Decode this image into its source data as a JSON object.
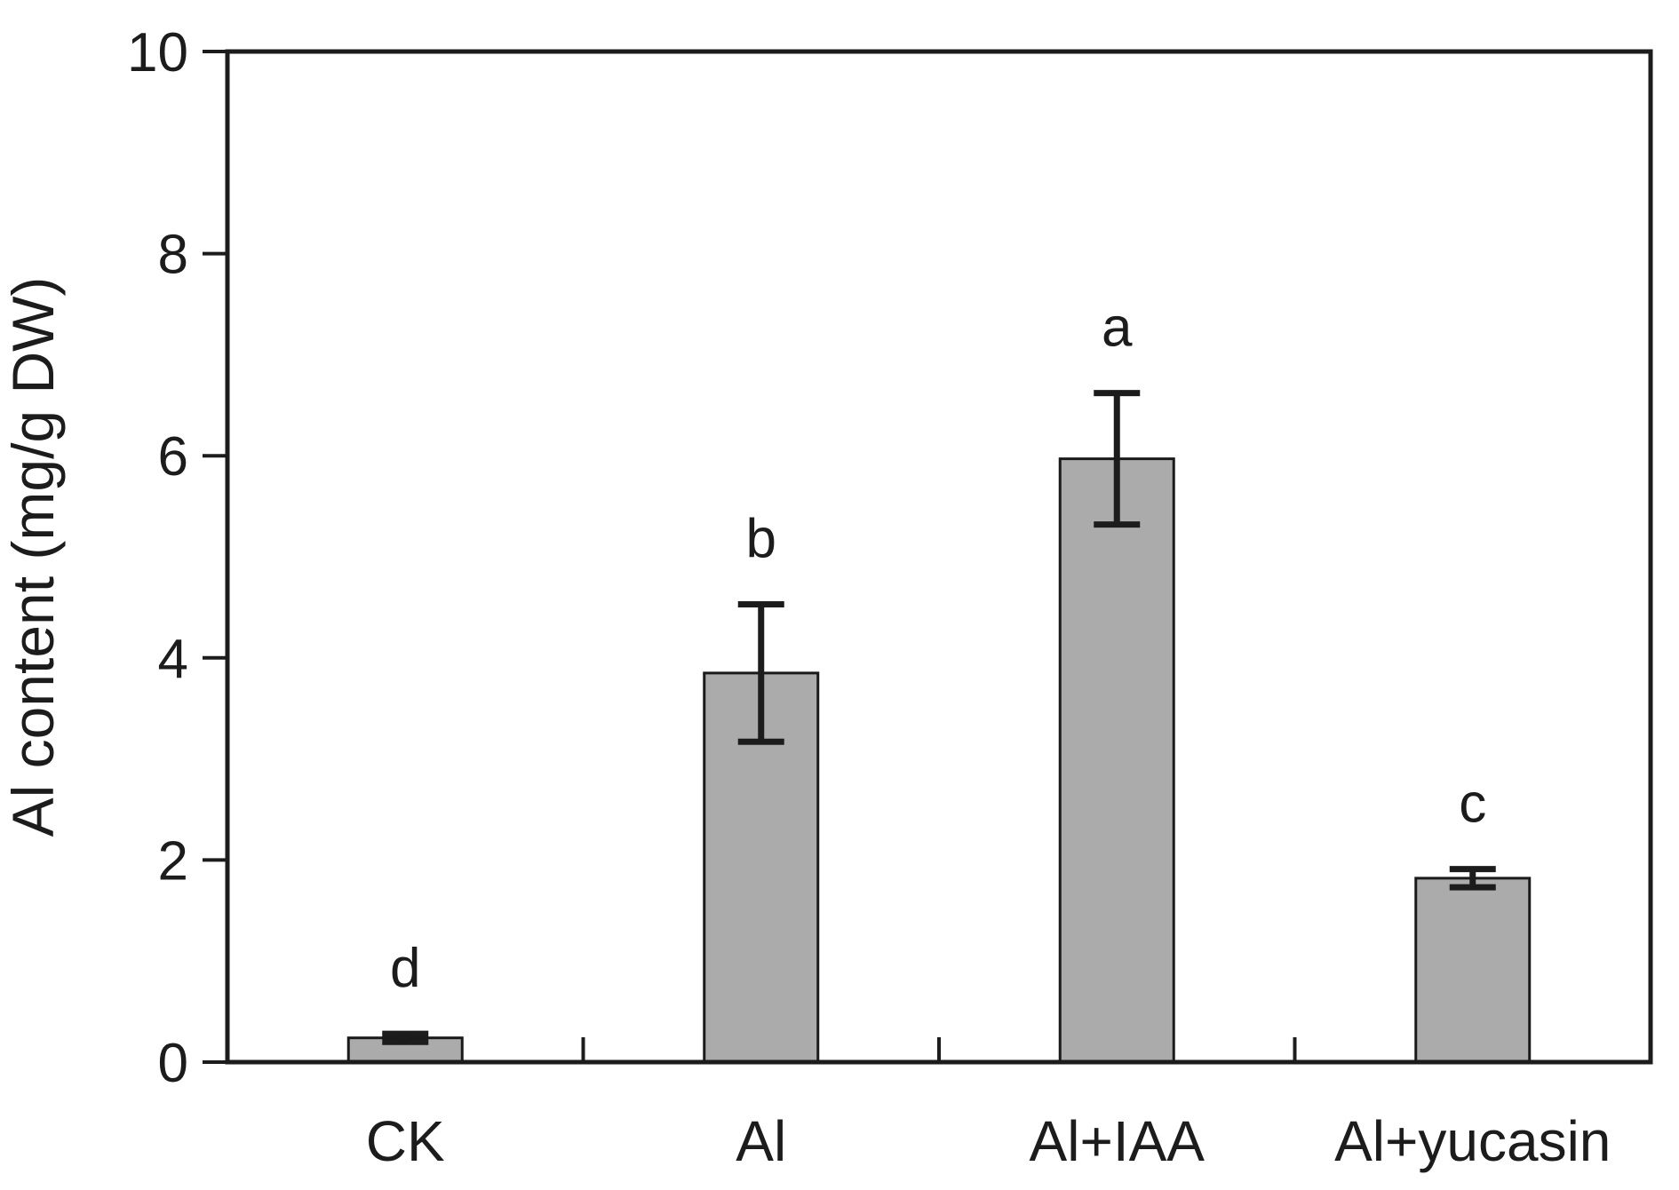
{
  "figure": {
    "background": "#ffffff",
    "description": "Bar chart of Al content with standard-error bars and significance letters"
  },
  "chart_data": {
    "type": "bar",
    "title": "",
    "xlabel": "",
    "ylabel": "Al content (mg/g DW)",
    "categories": [
      "CK",
      "Al",
      "Al+IAA",
      "Al+yucasin"
    ],
    "values": [
      0.24,
      3.85,
      5.97,
      1.82
    ],
    "error_bars": [
      0.04,
      0.68,
      0.65,
      0.09
    ],
    "sig_letters": [
      "d",
      "b",
      "a",
      "c"
    ],
    "ylim": [
      0,
      10
    ],
    "yticks": [
      0,
      2,
      4,
      6,
      8,
      10
    ],
    "grid": false,
    "legend": "none",
    "frame": "full-box",
    "x_minor_ticks": "between-categories",
    "colors": {
      "bar_fill": "#ababab",
      "bar_stroke": "#1a1a1a",
      "line": "#1c1c1c",
      "text": "#1c1c1c",
      "background": "#ffffff"
    }
  }
}
